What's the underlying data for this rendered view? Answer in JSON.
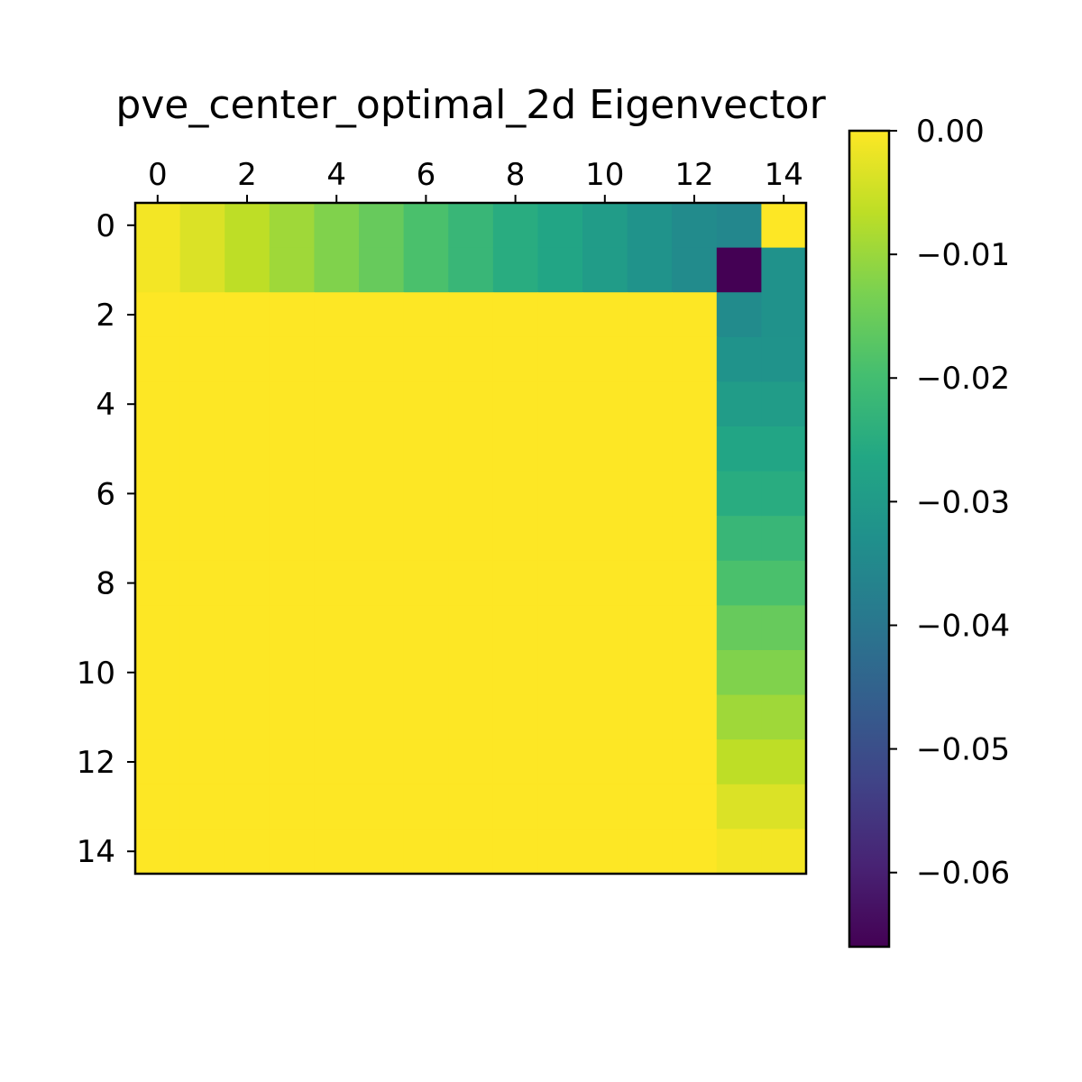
{
  "chart_data": {
    "type": "heatmap",
    "title": "pve_center_optimal_2d Eigenvector",
    "xlabel": "",
    "ylabel": "",
    "x_ticks": [
      0,
      2,
      4,
      6,
      8,
      10,
      12,
      14
    ],
    "y_ticks": [
      0,
      2,
      4,
      6,
      8,
      10,
      12,
      14
    ],
    "x_range": [
      -0.5,
      14.5
    ],
    "y_range": [
      -0.5,
      14.5
    ],
    "x_axis_position": "top",
    "y_origin": "top",
    "grid": false,
    "colormap": "viridis",
    "colorbar": {
      "placement": "right",
      "vmin": -0.066,
      "vmax": 0.0,
      "tick_values": [
        0.0,
        -0.01,
        -0.02,
        -0.03,
        -0.04,
        -0.05,
        -0.06
      ],
      "tick_labels": [
        "0.00",
        "−0.01",
        "−0.02",
        "−0.03",
        "−0.04",
        "−0.05",
        "−0.06"
      ]
    },
    "rows": 15,
    "cols": 15,
    "values": [
      [
        -0.001,
        -0.0035,
        -0.0065,
        -0.0095,
        -0.0125,
        -0.0155,
        -0.019,
        -0.022,
        -0.025,
        -0.027,
        -0.0295,
        -0.032,
        -0.0345,
        -0.0355,
        0.0
      ],
      [
        -0.001,
        -0.0035,
        -0.0065,
        -0.0095,
        -0.0125,
        -0.0155,
        -0.019,
        -0.022,
        -0.025,
        -0.027,
        -0.0295,
        -0.032,
        -0.0345,
        -0.066,
        -0.0325
      ],
      [
        0.0,
        0.0,
        0.0,
        0.0,
        0.0,
        0.0,
        0.0,
        0.0,
        0.0,
        0.0,
        0.0,
        0.0,
        0.0,
        -0.0345,
        -0.0325
      ],
      [
        0.0,
        0.0,
        0.0,
        0.0,
        0.0,
        0.0,
        0.0,
        0.0,
        0.0,
        0.0,
        0.0,
        0.0,
        0.0,
        -0.032,
        -0.032
      ],
      [
        0.0,
        0.0,
        0.0,
        0.0,
        0.0,
        0.0,
        0.0,
        0.0,
        0.0,
        0.0,
        0.0,
        0.0,
        0.0,
        -0.0295,
        -0.0295
      ],
      [
        0.0,
        0.0,
        0.0,
        0.0,
        0.0,
        0.0,
        0.0,
        0.0,
        0.0,
        0.0,
        0.0,
        0.0,
        0.0,
        -0.027,
        -0.027
      ],
      [
        0.0,
        0.0,
        0.0,
        0.0,
        0.0,
        0.0,
        0.0,
        0.0,
        0.0,
        0.0,
        0.0,
        0.0,
        0.0,
        -0.025,
        -0.025
      ],
      [
        0.0,
        0.0,
        0.0,
        0.0,
        0.0,
        0.0,
        0.0,
        0.0,
        0.0,
        0.0,
        0.0,
        0.0,
        0.0,
        -0.022,
        -0.022
      ],
      [
        0.0,
        0.0,
        0.0,
        0.0,
        0.0,
        0.0,
        0.0,
        0.0,
        0.0,
        0.0,
        0.0,
        0.0,
        0.0,
        -0.019,
        -0.019
      ],
      [
        0.0,
        0.0,
        0.0,
        0.0,
        0.0,
        0.0,
        0.0,
        0.0,
        0.0,
        0.0,
        0.0,
        0.0,
        0.0,
        -0.0155,
        -0.0155
      ],
      [
        0.0,
        0.0,
        0.0,
        0.0,
        0.0,
        0.0,
        0.0,
        0.0,
        0.0,
        0.0,
        0.0,
        0.0,
        0.0,
        -0.0125,
        -0.0125
      ],
      [
        0.0,
        0.0,
        0.0,
        0.0,
        0.0,
        0.0,
        0.0,
        0.0,
        0.0,
        0.0,
        0.0,
        0.0,
        0.0,
        -0.0095,
        -0.0095
      ],
      [
        0.0,
        0.0,
        0.0,
        0.0,
        0.0,
        0.0,
        0.0,
        0.0,
        0.0,
        0.0,
        0.0,
        0.0,
        0.0,
        -0.0065,
        -0.0065
      ],
      [
        0.0,
        0.0,
        0.0,
        0.0,
        0.0,
        0.0,
        0.0,
        0.0,
        0.0,
        0.0,
        0.0,
        0.0,
        0.0,
        -0.0035,
        -0.0035
      ],
      [
        0.0,
        0.0,
        0.0,
        0.0,
        0.0,
        0.0,
        0.0,
        0.0,
        0.0,
        0.0,
        0.0,
        0.0,
        0.0,
        -0.001,
        -0.001
      ]
    ]
  }
}
